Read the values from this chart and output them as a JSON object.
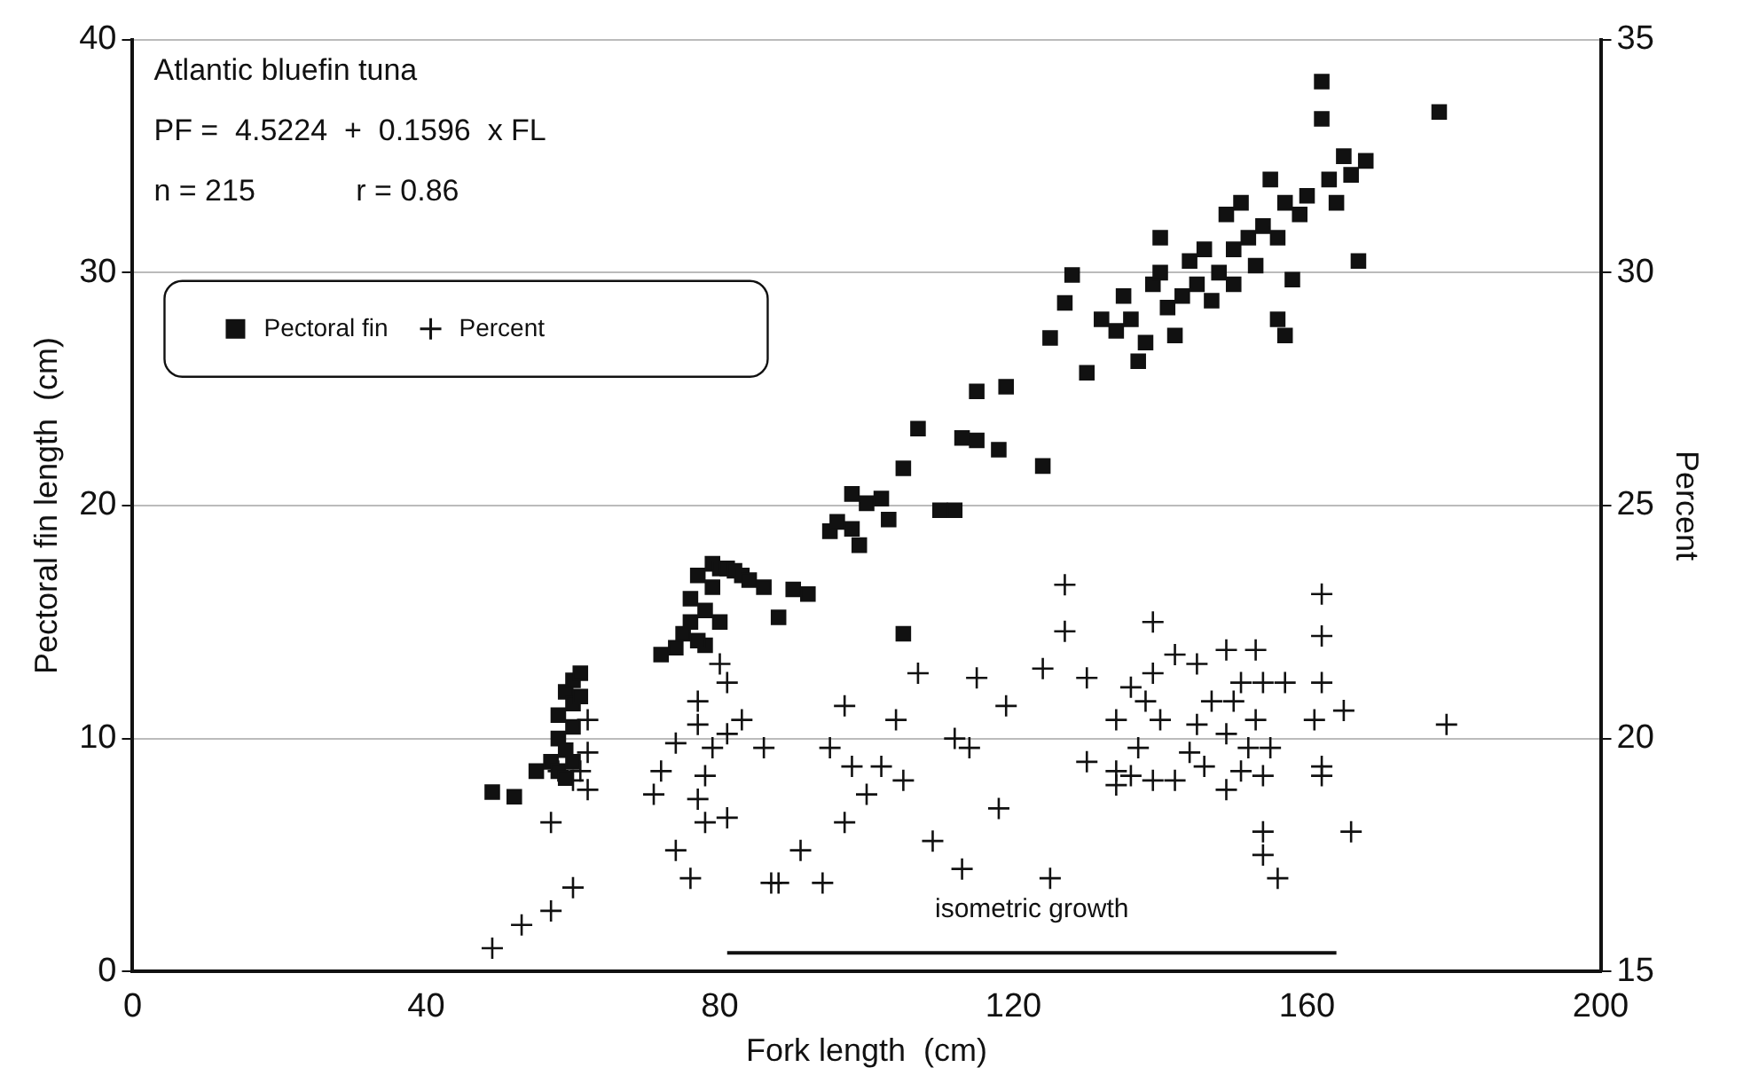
{
  "chart_data": {
    "type": "scatter",
    "xlabel": "Fork length  (cm)",
    "ylabel": "Pectoral fin length  (cm)",
    "y2label": "Percent",
    "annotations": [
      "Atlantic bluefin tuna",
      "PF =  4.5224  +  0.1596  x FL",
      "n = 215            r = 0.86"
    ],
    "xlim": [
      0,
      200
    ],
    "xticks": [
      0,
      40,
      80,
      120,
      160,
      200
    ],
    "ylim": [
      0,
      40
    ],
    "yticks": [
      0,
      10,
      20,
      30,
      40
    ],
    "y2lim": [
      15,
      35
    ],
    "y2ticks": [
      15,
      20,
      25,
      30,
      35
    ],
    "grid": "y",
    "legend": "top left",
    "series": [
      {
        "name": "Pectoral fin",
        "type": "scatter",
        "marker": "square",
        "color": "#111111",
        "x": [
          49,
          52,
          55,
          57,
          58,
          58,
          59,
          59,
          60,
          60,
          60,
          61,
          61,
          58,
          59,
          60,
          72,
          74,
          75,
          76,
          76,
          77,
          78,
          78,
          79,
          79,
          80,
          81,
          82,
          80,
          77,
          83,
          84,
          86,
          88,
          90,
          92,
          95,
          96,
          98,
          98,
          99,
          100,
          102,
          103,
          105,
          105,
          107,
          110,
          112,
          113,
          115,
          115,
          118,
          119,
          124,
          125,
          127,
          128,
          130,
          132,
          134,
          135,
          136,
          137,
          138,
          139,
          140,
          140,
          141,
          142,
          143,
          144,
          145,
          146,
          147,
          148,
          149,
          150,
          150,
          151,
          152,
          153,
          154,
          155,
          156,
          157,
          158,
          159,
          160,
          156,
          157,
          162,
          162,
          163,
          164,
          165,
          166,
          167,
          168,
          178
        ],
        "values": [
          7.7,
          7.5,
          8.6,
          9,
          10,
          11,
          12,
          9.5,
          11.5,
          10.5,
          12.5,
          12.8,
          11.8,
          8.6,
          8.3,
          9,
          13.6,
          13.9,
          14.5,
          15,
          16,
          17,
          15.5,
          14,
          16.5,
          17.5,
          17.3,
          17.3,
          17.2,
          15,
          14.2,
          17,
          16.8,
          16.5,
          15.2,
          16.4,
          16.2,
          18.9,
          19.3,
          20.5,
          19,
          18.3,
          20.1,
          20.3,
          19.4,
          14.5,
          21.6,
          23.3,
          19.8,
          19.8,
          22.9,
          24.9,
          22.8,
          22.4,
          25.1,
          21.7,
          27.2,
          28.7,
          29.9,
          25.7,
          28,
          27.5,
          29,
          28,
          26.2,
          27,
          29.5,
          31.5,
          30,
          28.5,
          27.3,
          29,
          30.5,
          29.5,
          31,
          28.8,
          30,
          32.5,
          31,
          29.5,
          33,
          31.5,
          30.3,
          32,
          34,
          31.5,
          33,
          29.7,
          32.5,
          33.3,
          28,
          27.3,
          38.2,
          36.6,
          34,
          33,
          35,
          34.2,
          30.5,
          34.8,
          36.9
        ]
      },
      {
        "name": "Percent",
        "type": "scatter",
        "marker": "cross",
        "color": "#111111",
        "axis": "y2",
        "x": [
          49,
          53,
          57,
          60,
          57,
          62,
          61,
          62,
          62,
          58,
          60,
          80,
          81,
          77,
          83,
          77,
          74,
          81,
          86,
          79,
          72,
          71,
          78,
          77,
          78,
          81,
          74,
          76,
          87,
          91,
          127,
          127,
          124,
          107,
          115,
          119,
          97,
          104,
          95,
          98,
          102,
          105,
          100,
          112,
          114,
          130,
          118,
          97,
          109,
          113,
          125,
          94,
          88,
          130,
          134,
          134,
          162,
          162,
          162,
          165,
          179,
          161,
          162,
          162,
          166,
          154,
          154,
          156,
          139,
          142,
          149,
          153,
          145,
          139,
          151,
          154,
          157,
          136,
          147,
          150,
          138,
          140,
          145,
          149,
          153,
          152,
          155,
          137,
          144,
          136,
          139,
          142,
          134,
          146,
          151,
          154,
          149
        ],
        "values": [
          15.5,
          16,
          16.3,
          16.8,
          18.2,
          18.9,
          19.3,
          20.4,
          19.7,
          19.3,
          19.1,
          21.6,
          21.2,
          20.8,
          20.4,
          20.3,
          19.9,
          20.1,
          19.8,
          19.8,
          19.3,
          18.8,
          19.2,
          18.7,
          18.2,
          18.3,
          17.6,
          17,
          16.9,
          17.6,
          23.3,
          22.3,
          21.5,
          21.4,
          21.3,
          20.7,
          20.7,
          20.4,
          19.8,
          19.4,
          19.4,
          19.1,
          18.8,
          20,
          19.8,
          19.5,
          18.5,
          18.2,
          17.8,
          17.2,
          17,
          16.9,
          16.9,
          21.3,
          19.3,
          20.4,
          23.1,
          22.2,
          21.2,
          20.6,
          20.3,
          20.4,
          19.4,
          19.2,
          18,
          18,
          17.5,
          17,
          22.5,
          21.8,
          21.9,
          21.9,
          21.6,
          21.4,
          21.2,
          21.2,
          21.2,
          21.1,
          20.8,
          20.8,
          20.8,
          20.4,
          20.3,
          20.1,
          20.4,
          19.8,
          19.8,
          19.8,
          19.7,
          19.2,
          19.1,
          19.1,
          19,
          19.4,
          19.3,
          19.2,
          18.9
        ]
      },
      {
        "name": "isometric growth",
        "type": "line",
        "marker": "none",
        "line_style": "solid",
        "color": "#111111",
        "axis": "y2",
        "x": [
          81,
          164
        ],
        "values": [
          15.4,
          15.4
        ]
      }
    ]
  }
}
